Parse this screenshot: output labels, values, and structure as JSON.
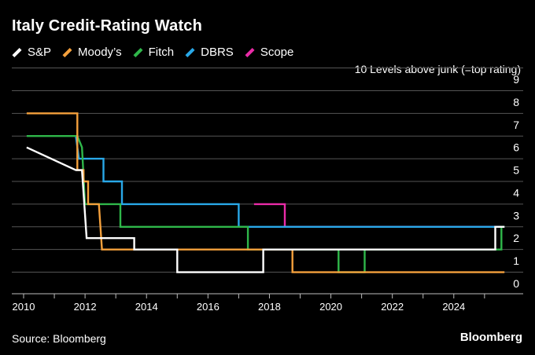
{
  "title": "Italy Credit-Rating Watch",
  "axis_note": "10 Levels above junk (=top rating)",
  "source": "Source: Bloomberg",
  "brand": "Bloomberg",
  "legend": [
    {
      "name": "S&P",
      "color": "#ffffff"
    },
    {
      "name": "Moody’s",
      "color": "#f4a03c"
    },
    {
      "name": "Fitch",
      "color": "#2fb74a"
    },
    {
      "name": "DBRS",
      "color": "#29a8e8"
    },
    {
      "name": "Scope",
      "color": "#ea2ca8"
    }
  ],
  "chart_data": {
    "type": "line",
    "line_shape": "step",
    "title": "Italy Credit-Rating Watch",
    "ylabel": "10 Levels above junk (=top rating)",
    "xlim": [
      2010,
      2025.9
    ],
    "ylim": [
      0,
      9
    ],
    "x_ticks": [
      "2010",
      "2012",
      "2014",
      "2016",
      "2018",
      "2020",
      "2022",
      "2024"
    ],
    "y_ticks": [
      "0",
      "1",
      "2",
      "3",
      "4",
      "5",
      "6",
      "7",
      "8",
      "9"
    ],
    "grid": true,
    "legend_position": "top-left",
    "series": [
      {
        "name": "S&P",
        "color": "#ffffff",
        "points": [
          [
            2010.1,
            6
          ],
          [
            2011.7,
            5
          ],
          [
            2011.9,
            5
          ],
          [
            2012.05,
            2
          ],
          [
            2013.6,
            2
          ],
          [
            2013.6,
            1.5
          ],
          [
            2015.0,
            1.5
          ],
          [
            2015.0,
            0.5
          ],
          [
            2017.8,
            0.5
          ],
          [
            2017.8,
            1.5
          ],
          [
            2025.35,
            1.5
          ],
          [
            2025.35,
            2.5
          ],
          [
            2025.65,
            2.5
          ]
        ]
      },
      {
        "name": "Moody’s",
        "color": "#f4a03c",
        "points": [
          [
            2010.1,
            7.5
          ],
          [
            2011.75,
            7.5
          ],
          [
            2011.75,
            5
          ],
          [
            2011.95,
            5
          ],
          [
            2011.95,
            4.5
          ],
          [
            2012.1,
            4.5
          ],
          [
            2012.1,
            3.5
          ],
          [
            2012.45,
            3.5
          ],
          [
            2012.55,
            1.5
          ],
          [
            2018.75,
            1.5
          ],
          [
            2018.75,
            0.5
          ],
          [
            2025.65,
            0.5
          ]
        ]
      },
      {
        "name": "Fitch",
        "color": "#2fb74a",
        "points": [
          [
            2010.1,
            6.5
          ],
          [
            2011.75,
            6.5
          ],
          [
            2011.9,
            6
          ],
          [
            2012.0,
            3.5
          ],
          [
            2013.15,
            3.5
          ],
          [
            2013.15,
            2.5
          ],
          [
            2017.3,
            2.5
          ],
          [
            2017.3,
            1.5
          ],
          [
            2020.25,
            1.5
          ],
          [
            2020.25,
            0.5
          ],
          [
            2021.1,
            0.5
          ],
          [
            2021.1,
            1.5
          ],
          [
            2025.55,
            1.5
          ],
          [
            2025.55,
            2.5
          ],
          [
            2025.65,
            2.5
          ]
        ]
      },
      {
        "name": "DBRS",
        "color": "#29a8e8",
        "points": [
          [
            2011.7,
            6.5
          ],
          [
            2011.8,
            5.5
          ],
          [
            2012.6,
            5.5
          ],
          [
            2012.6,
            4.5
          ],
          [
            2013.2,
            4.5
          ],
          [
            2013.2,
            3.5
          ],
          [
            2017.0,
            3.5
          ],
          [
            2017.0,
            2.5
          ],
          [
            2025.65,
            2.5
          ]
        ]
      },
      {
        "name": "Scope",
        "color": "#ea2ca8",
        "points": [
          [
            2017.5,
            3.5
          ],
          [
            2018.5,
            3.5
          ],
          [
            2018.5,
            2.5
          ],
          [
            2025.65,
            2.5
          ]
        ]
      }
    ]
  }
}
